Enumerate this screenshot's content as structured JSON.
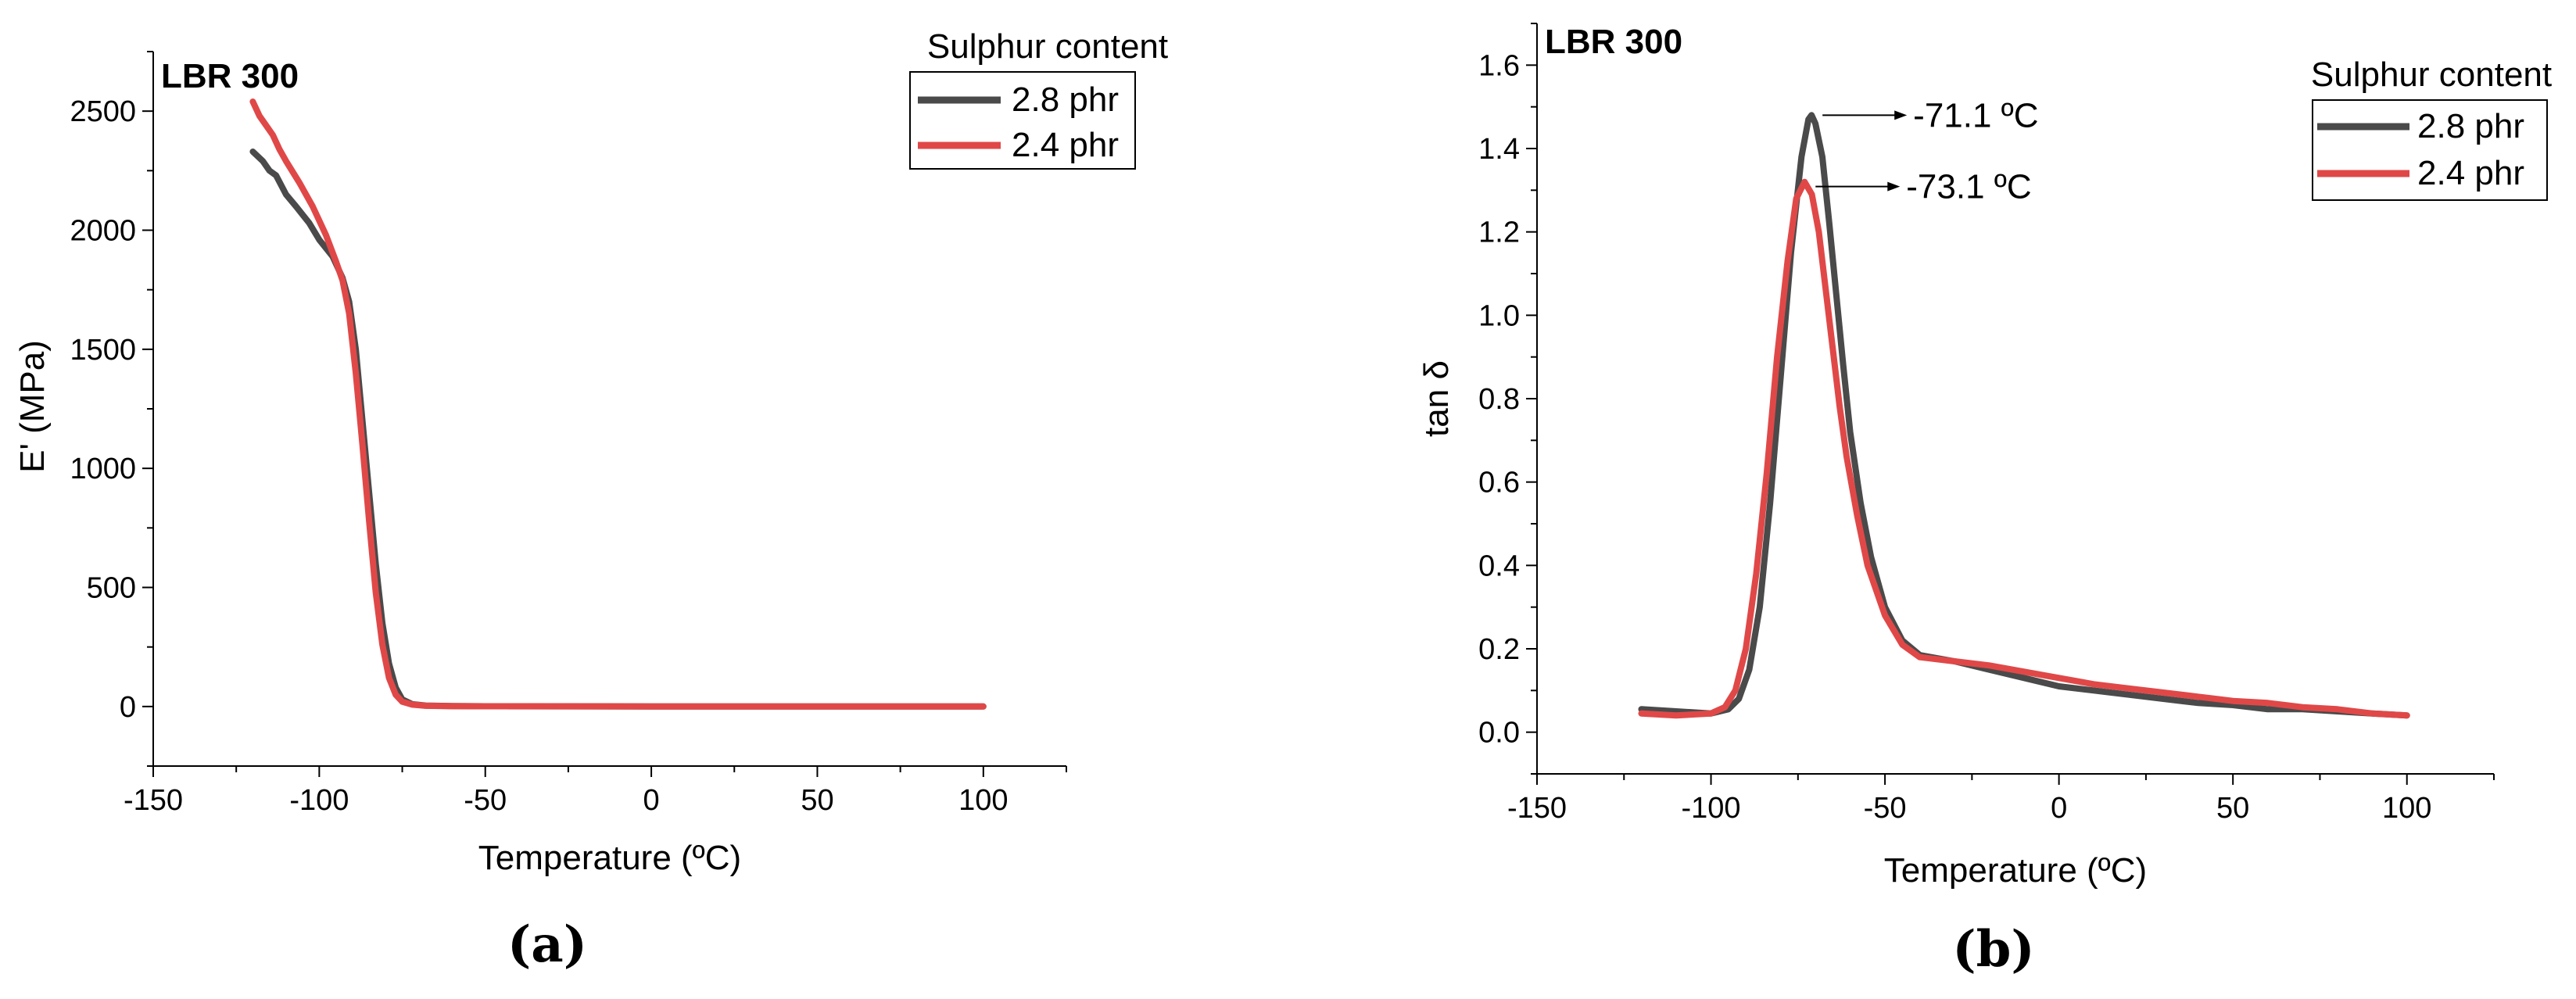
{
  "chart_data": [
    {
      "type": "line",
      "panel_label": "(a)",
      "inner_title": "LBR 300",
      "xlabel": "Temperature (ºC)",
      "ylabel": "E' (MPa)",
      "xlim": [
        -150,
        125
      ],
      "ylim": [
        -250,
        2750
      ],
      "xticks": [
        -150,
        -100,
        -50,
        0,
        50,
        100
      ],
      "yticks": [
        0,
        500,
        1000,
        1500,
        2000,
        2500
      ],
      "legend_title": "Sulphur content",
      "legend_position": "top-right",
      "series": [
        {
          "name": "2.8 phr",
          "color": "#4a4a4a",
          "points": [
            [
              -120,
              2330
            ],
            [
              -117,
              2290
            ],
            [
              -115,
              2250
            ],
            [
              -113,
              2230
            ],
            [
              -110,
              2150
            ],
            [
              -107,
              2100
            ],
            [
              -103,
              2030
            ],
            [
              -100,
              1960
            ],
            [
              -96,
              1890
            ],
            [
              -93,
              1800
            ],
            [
              -91,
              1700
            ],
            [
              -89,
              1500
            ],
            [
              -87,
              1200
            ],
            [
              -85,
              900
            ],
            [
              -83,
              600
            ],
            [
              -81,
              350
            ],
            [
              -79,
              180
            ],
            [
              -77,
              80
            ],
            [
              -75,
              30
            ],
            [
              -72,
              10
            ],
            [
              -68,
              4
            ],
            [
              -60,
              2
            ],
            [
              -50,
              1
            ],
            [
              0,
              0.5
            ],
            [
              50,
              0.3
            ],
            [
              100,
              0.2
            ]
          ]
        },
        {
          "name": "2.4 phr",
          "color": "#e04848",
          "points": [
            [
              -120,
              2540
            ],
            [
              -118,
              2480
            ],
            [
              -116,
              2440
            ],
            [
              -114,
              2400
            ],
            [
              -112,
              2340
            ],
            [
              -110,
              2290
            ],
            [
              -106,
              2200
            ],
            [
              -102,
              2100
            ],
            [
              -98,
              1980
            ],
            [
              -95,
              1870
            ],
            [
              -93,
              1790
            ],
            [
              -91,
              1650
            ],
            [
              -89,
              1400
            ],
            [
              -87,
              1100
            ],
            [
              -85,
              780
            ],
            [
              -83,
              480
            ],
            [
              -81,
              260
            ],
            [
              -79,
              120
            ],
            [
              -77,
              50
            ],
            [
              -75,
              20
            ],
            [
              -72,
              8
            ],
            [
              -68,
              3
            ],
            [
              -60,
              1.5
            ],
            [
              -50,
              1
            ],
            [
              0,
              0.5
            ],
            [
              50,
              0.3
            ],
            [
              100,
              0.2
            ]
          ]
        }
      ]
    },
    {
      "type": "line",
      "panel_label": "(b)",
      "inner_title": "LBR 300",
      "xlabel": "Temperature (ºC)",
      "ylabel": "tan δ",
      "xlim": [
        -150,
        125
      ],
      "ylim": [
        -0.1,
        1.7
      ],
      "xticks": [
        -150,
        -100,
        -50,
        0,
        50,
        100
      ],
      "yticks": [
        0.0,
        0.2,
        0.4,
        0.6,
        0.8,
        1.0,
        1.2,
        1.4,
        1.6
      ],
      "legend_title": "Sulphur content",
      "legend_position": "top-right",
      "annotations": [
        {
          "text": "-71.1 ºC",
          "x": -71.1,
          "y": 1.48
        },
        {
          "text": "-73.1 ºC",
          "x": -73.1,
          "y": 1.32
        }
      ],
      "series": [
        {
          "name": "2.8 phr",
          "color": "#4a4a4a",
          "points": [
            [
              -120,
              0.055
            ],
            [
              -110,
              0.05
            ],
            [
              -100,
              0.045
            ],
            [
              -95,
              0.055
            ],
            [
              -92,
              0.08
            ],
            [
              -89,
              0.15
            ],
            [
              -86,
              0.3
            ],
            [
              -83,
              0.55
            ],
            [
              -80,
              0.85
            ],
            [
              -77,
              1.15
            ],
            [
              -74,
              1.38
            ],
            [
              -72,
              1.47
            ],
            [
              -71.1,
              1.48
            ],
            [
              -70,
              1.46
            ],
            [
              -68,
              1.38
            ],
            [
              -66,
              1.22
            ],
            [
              -64,
              1.05
            ],
            [
              -62,
              0.88
            ],
            [
              -60,
              0.72
            ],
            [
              -57,
              0.55
            ],
            [
              -54,
              0.42
            ],
            [
              -50,
              0.3
            ],
            [
              -45,
              0.22
            ],
            [
              -40,
              0.185
            ],
            [
              -30,
              0.17
            ],
            [
              -20,
              0.15
            ],
            [
              -10,
              0.13
            ],
            [
              0,
              0.11
            ],
            [
              10,
              0.1
            ],
            [
              20,
              0.09
            ],
            [
              30,
              0.08
            ],
            [
              40,
              0.07
            ],
            [
              50,
              0.065
            ],
            [
              60,
              0.055
            ],
            [
              70,
              0.055
            ],
            [
              80,
              0.05
            ],
            [
              90,
              0.045
            ],
            [
              100,
              0.04
            ]
          ]
        },
        {
          "name": "2.4 phr",
          "color": "#e04848",
          "points": [
            [
              -120,
              0.045
            ],
            [
              -110,
              0.04
            ],
            [
              -100,
              0.045
            ],
            [
              -96,
              0.06
            ],
            [
              -93,
              0.1
            ],
            [
              -90,
              0.2
            ],
            [
              -87,
              0.38
            ],
            [
              -84,
              0.62
            ],
            [
              -81,
              0.9
            ],
            [
              -78,
              1.13
            ],
            [
              -75.5,
              1.28
            ],
            [
              -73.1,
              1.32
            ],
            [
              -71,
              1.29
            ],
            [
              -69,
              1.2
            ],
            [
              -67,
              1.06
            ],
            [
              -65,
              0.92
            ],
            [
              -63,
              0.78
            ],
            [
              -61,
              0.66
            ],
            [
              -58,
              0.52
            ],
            [
              -55,
              0.4
            ],
            [
              -50,
              0.28
            ],
            [
              -45,
              0.21
            ],
            [
              -40,
              0.18
            ],
            [
              -30,
              0.17
            ],
            [
              -20,
              0.16
            ],
            [
              -10,
              0.145
            ],
            [
              0,
              0.13
            ],
            [
              10,
              0.115
            ],
            [
              20,
              0.105
            ],
            [
              30,
              0.095
            ],
            [
              40,
              0.085
            ],
            [
              50,
              0.075
            ],
            [
              60,
              0.07
            ],
            [
              70,
              0.06
            ],
            [
              80,
              0.055
            ],
            [
              90,
              0.045
            ],
            [
              100,
              0.04
            ]
          ]
        }
      ]
    }
  ]
}
